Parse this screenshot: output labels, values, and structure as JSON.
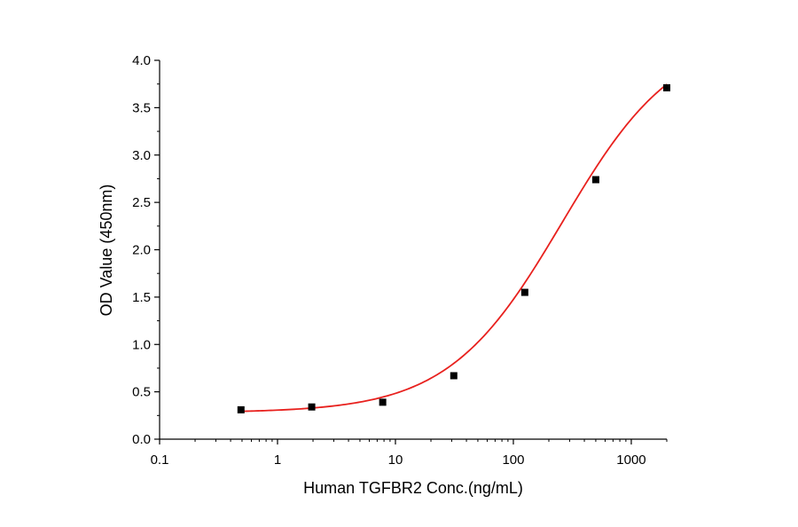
{
  "chart_data": {
    "type": "scatter",
    "title": "",
    "xlabel": "Human TGFBR2 Conc.(ng/mL)",
    "ylabel": "OD Value (450nm)",
    "xscale": "log",
    "xlim": [
      0.1,
      2000
    ],
    "ylim": [
      0,
      4.0
    ],
    "x_ticks": [
      0.1,
      1,
      10,
      100,
      1000
    ],
    "x_tick_labels": [
      "0.1",
      "1",
      "10",
      "100",
      "1000"
    ],
    "y_ticks": [
      0,
      0.5,
      1,
      1.5,
      2,
      2.5,
      3,
      3.5,
      4
    ],
    "y_tick_labels": [
      "0.0",
      "0.5",
      "1.0",
      "1.5",
      "2.0",
      "2.5",
      "3.0",
      "3.5",
      "4.0"
    ],
    "grid": false,
    "legend": "none",
    "series": [
      {
        "marker": "square",
        "color": "#000000",
        "x": [
          0.49,
          1.95,
          7.8,
          31.25,
          125,
          500,
          2000
        ],
        "y": [
          0.31,
          0.34,
          0.39,
          0.67,
          1.55,
          2.74,
          3.71
        ]
      }
    ],
    "fit_curve": {
      "color": "#e8211e",
      "model": "4PL",
      "bottom": 0.28,
      "top": 4.3,
      "ec50": 260,
      "hill": 0.9,
      "x_range": [
        0.49,
        2000
      ]
    }
  }
}
